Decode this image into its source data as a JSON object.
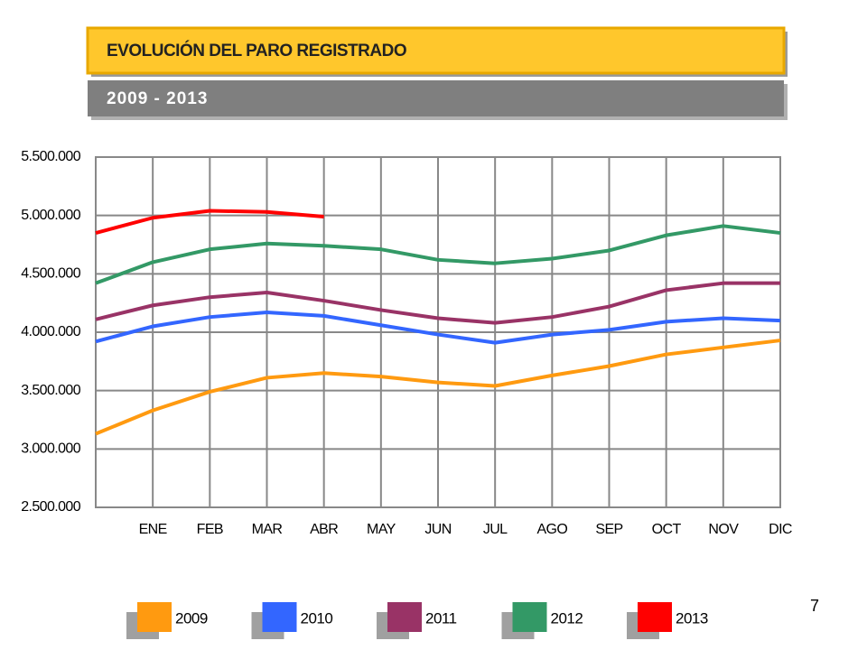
{
  "chart_data": {
    "type": "line",
    "title": "EVOLUCIÓN DEL PARO REGISTRADO",
    "subtitle": "2009 - 2013",
    "page_number": "7",
    "categories": [
      null,
      "ENE",
      "FEB",
      "MAR",
      "ABR",
      "MAY",
      "JUN",
      "JUL",
      "AGO",
      "SEP",
      "OCT",
      "NOV",
      "DIC"
    ],
    "ylim": [
      2500000,
      5500000
    ],
    "yticks": [
      {
        "value": 2500000,
        "label": "2.500.000"
      },
      {
        "value": 3000000,
        "label": "3.000.000"
      },
      {
        "value": 3500000,
        "label": "3.500.000"
      },
      {
        "value": 4000000,
        "label": "4.000.000"
      },
      {
        "value": 4500000,
        "label": "4.500.000"
      },
      {
        "value": 5000000,
        "label": "5.000.000"
      },
      {
        "value": 5500000,
        "label": "5.500.000"
      }
    ],
    "grid": true,
    "legend": "bottom",
    "series": [
      {
        "name": "2009",
        "color": "#ff9a10",
        "values": [
          3130000,
          3330000,
          3490000,
          3610000,
          3650000,
          3620000,
          3570000,
          3540000,
          3630000,
          3710000,
          3810000,
          3870000,
          3930000
        ]
      },
      {
        "name": "2010",
        "color": "#3366ff",
        "values": [
          3920000,
          4050000,
          4130000,
          4170000,
          4140000,
          4060000,
          3980000,
          3910000,
          3980000,
          4020000,
          4090000,
          4120000,
          4100000
        ]
      },
      {
        "name": "2011",
        "color": "#993366",
        "values": [
          4110000,
          4230000,
          4300000,
          4340000,
          4270000,
          4190000,
          4120000,
          4080000,
          4130000,
          4220000,
          4360000,
          4420000,
          4420000
        ]
      },
      {
        "name": "2012",
        "color": "#339966",
        "values": [
          4420000,
          4600000,
          4710000,
          4760000,
          4740000,
          4710000,
          4620000,
          4590000,
          4630000,
          4700000,
          4830000,
          4910000,
          4850000
        ]
      },
      {
        "name": "2013",
        "color": "#ff0000",
        "values": [
          4850000,
          4980000,
          5040000,
          5030000,
          4990000,
          null,
          null,
          null,
          null,
          null,
          null,
          null,
          null
        ]
      }
    ]
  }
}
